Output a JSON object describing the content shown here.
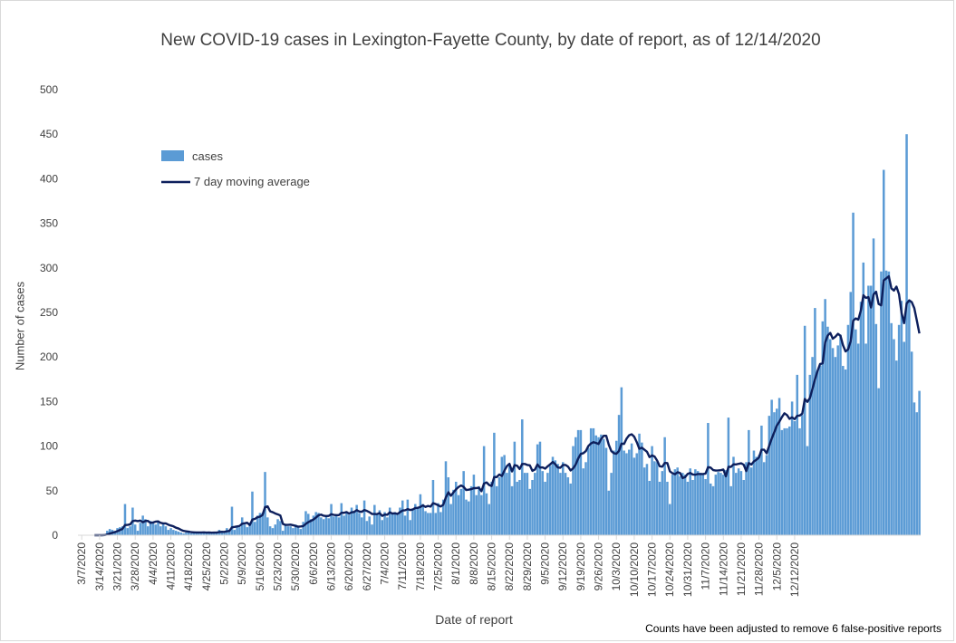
{
  "chart_data": {
    "type": "bar",
    "title": "New COVID-19 cases in Lexington-Fayette County, by date of report, as of 12/14/2020",
    "xlabel": "Date of report",
    "ylabel": "Number of cases",
    "note": "Counts have been adjusted to remove 6 false-positive reports",
    "ylim": [
      0,
      500
    ],
    "y_ticks": [
      0,
      50,
      100,
      150,
      200,
      250,
      300,
      350,
      400,
      450,
      500
    ],
    "x_ticks": [
      "3/7/2020",
      "3/14/2020",
      "3/21/2020",
      "3/28/2020",
      "4/4/2020",
      "4/11/2020",
      "4/18/2020",
      "4/25/2020",
      "5/2/2020",
      "5/9/2020",
      "5/16/2020",
      "5/23/2020",
      "5/30/2020",
      "6/6/2020",
      "6/13/2020",
      "6/20/2020",
      "6/27/2020",
      "7/4/2020",
      "7/11/2020",
      "7/18/2020",
      "7/25/2020",
      "8/1/2020",
      "8/8/2020",
      "8/15/2020",
      "8/22/2020",
      "8/29/2020",
      "9/5/2020",
      "9/12/2020",
      "9/19/2020",
      "9/26/2020",
      "10/3/2020",
      "10/10/2020",
      "10/17/2020",
      "10/24/2020",
      "10/31/2020",
      "11/7/2020",
      "11/14/2020",
      "11/21/2020",
      "11/28/2020",
      "12/5/2020",
      "12/12/2020"
    ],
    "grid": false,
    "legend_position": "top-left",
    "colors": {
      "bars": "#5b9bd5",
      "line": "#0d1f5c"
    },
    "series": [
      {
        "name": "cases",
        "type": "bar",
        "start_date": "3/6/2020",
        "values": [
          0,
          0,
          0,
          0,
          0,
          0,
          0,
          0,
          0,
          0,
          1,
          5,
          7,
          6,
          5,
          8,
          9,
          10,
          35,
          8,
          10,
          31,
          12,
          5,
          14,
          22,
          18,
          10,
          16,
          15,
          12,
          16,
          10,
          14,
          10,
          6,
          8,
          6,
          5,
          4,
          3,
          2,
          3,
          5,
          2,
          4,
          3,
          3,
          2,
          4,
          3,
          3,
          2,
          4,
          3,
          6,
          5,
          3,
          8,
          5,
          32,
          6,
          10,
          9,
          20,
          12,
          9,
          14,
          49,
          15,
          22,
          25,
          25,
          71,
          20,
          10,
          8,
          12,
          18,
          16,
          5,
          12,
          10,
          10,
          8,
          12,
          10,
          7,
          15,
          27,
          24,
          18,
          22,
          26,
          25,
          20,
          18,
          22,
          19,
          35,
          21,
          23,
          20,
          36,
          22,
          25,
          23,
          31,
          26,
          34,
          25,
          20,
          39,
          16,
          21,
          12,
          34,
          24,
          28,
          17,
          26,
          20,
          31,
          24,
          26,
          23,
          31,
          39,
          22,
          40,
          17,
          30,
          35,
          32,
          46,
          35,
          27,
          25,
          25,
          62,
          25,
          36,
          26,
          40,
          83,
          65,
          35,
          51,
          60,
          45,
          52,
          72,
          40,
          38,
          55,
          68,
          45,
          55,
          45,
          100,
          47,
          35,
          60,
          115,
          55,
          65,
          88,
          90,
          70,
          78,
          55,
          105,
          60,
          62,
          130,
          70,
          70,
          52,
          62,
          70,
          102,
          105,
          72,
          60,
          70,
          78,
          88,
          84,
          80,
          70,
          82,
          70,
          65,
          58,
          100,
          110,
          118,
          118,
          75,
          82,
          98,
          120,
          120,
          112,
          110,
          113,
          108,
          98,
          50,
          70,
          95,
          106,
          135,
          166,
          95,
          92,
          96,
          103,
          87,
          92,
          114,
          104,
          76,
          80,
          61,
          100,
          83,
          82,
          60,
          72,
          110,
          60,
          35,
          68,
          74,
          76,
          66,
          70,
          68,
          60,
          75,
          62,
          74,
          72,
          70,
          68,
          63,
          126,
          58,
          55,
          68,
          71,
          70,
          68,
          73,
          132,
          55,
          88,
          70,
          75,
          72,
          62,
          82,
          118,
          76,
          95,
          88,
          90,
          123,
          82,
          90,
          134,
          152,
          138,
          142,
          154,
          118,
          120,
          120,
          122,
          150,
          128,
          180,
          120,
          135,
          235,
          100,
          180,
          200,
          255,
          185,
          190,
          240,
          265,
          234,
          220,
          210,
          200,
          213,
          225,
          190,
          186,
          236,
          273,
          362,
          231,
          215,
          262,
          306,
          215,
          280,
          280,
          333,
          237,
          165,
          296,
          410,
          297,
          296,
          238,
          220,
          196,
          236,
          263,
          217,
          450,
          263,
          206,
          149,
          138,
          162
        ]
      },
      {
        "name": "7 day moving average",
        "type": "line",
        "values": "computed: trailing 7-day mean of cases"
      }
    ]
  }
}
